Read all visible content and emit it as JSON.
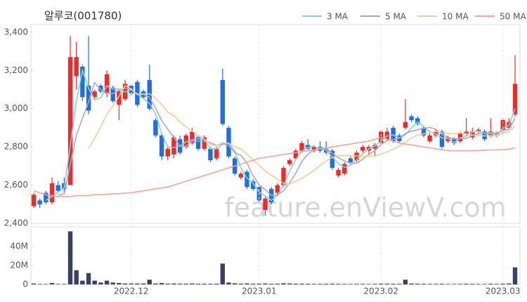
{
  "chart_data": [
    {
      "type": "candlestick",
      "title": "알루코(001780)",
      "watermark": "feature.enViewV.com",
      "up_color": "#ee2b2b",
      "down_color": "#1f6fe0",
      "open": [
        2490,
        2520,
        2560,
        2510,
        2600,
        2610,
        2600,
        3170,
        3220,
        3120,
        3060,
        3120,
        3080,
        3110,
        3020,
        3050,
        3120,
        3140,
        3090,
        3150,
        2940,
        2860,
        2750,
        2760,
        2840,
        2800,
        2820,
        2850,
        2790,
        2790,
        2740,
        3150,
        2900,
        2740,
        2640,
        2670,
        2620,
        2590,
        2470,
        2580,
        2560,
        2600,
        2710,
        2740,
        2780,
        2810,
        2780,
        2800,
        2790,
        2780,
        2650,
        2660,
        2740,
        2730,
        2780,
        2780,
        2790,
        2820,
        2840,
        2900,
        2860,
        2900,
        2960,
        2950,
        2900,
        2830,
        2860,
        2880,
        2830,
        2840,
        2830,
        2870,
        2850,
        2880,
        2880,
        2860,
        2860,
        2890,
        2900,
        2970
      ],
      "high": [
        2560,
        2530,
        2570,
        2640,
        2620,
        2640,
        3380,
        3350,
        3230,
        3380,
        3100,
        3130,
        3200,
        3120,
        3100,
        3150,
        3130,
        3150,
        3100,
        3230,
        2950,
        2870,
        2800,
        2860,
        2860,
        2870,
        2900,
        2860,
        2860,
        2800,
        2800,
        3210,
        2910,
        2750,
        2670,
        2680,
        2630,
        2600,
        2540,
        2590,
        2610,
        2700,
        2740,
        2790,
        2830,
        2840,
        2810,
        2830,
        2830,
        2790,
        2690,
        2720,
        2750,
        2780,
        2810,
        2810,
        2820,
        2890,
        2900,
        2910,
        2870,
        3050,
        2970,
        2960,
        2910,
        2870,
        2890,
        2890,
        2860,
        2850,
        2880,
        2950,
        2900,
        2900,
        2890,
        2950,
        2880,
        2950,
        2950,
        3280
      ],
      "low": [
        2480,
        2480,
        2500,
        2500,
        2560,
        2560,
        2600,
        3100,
        3040,
        2970,
        3050,
        3080,
        3060,
        3030,
        2940,
        3040,
        3070,
        3010,
        3050,
        2990,
        2850,
        2730,
        2730,
        2740,
        2760,
        2790,
        2810,
        2780,
        2780,
        2720,
        2730,
        2910,
        2740,
        2650,
        2630,
        2580,
        2570,
        2510,
        2440,
        2500,
        2550,
        2590,
        2700,
        2730,
        2770,
        2780,
        2770,
        2770,
        2760,
        2680,
        2640,
        2650,
        2710,
        2720,
        2770,
        2760,
        2750,
        2810,
        2830,
        2820,
        2820,
        2890,
        2930,
        2910,
        2850,
        2820,
        2850,
        2790,
        2820,
        2810,
        2820,
        2860,
        2840,
        2870,
        2830,
        2850,
        2850,
        2870,
        2890,
        2960
      ],
      "close": [
        2550,
        2500,
        2510,
        2610,
        2570,
        2580,
        3270,
        3270,
        3060,
        2990,
        3090,
        3090,
        3180,
        3040,
        3090,
        3130,
        3080,
        3020,
        3060,
        3000,
        2860,
        2750,
        2790,
        2850,
        2770,
        2860,
        2880,
        2790,
        2850,
        2730,
        2790,
        2920,
        2750,
        2660,
        2660,
        2590,
        2580,
        2520,
        2530,
        2510,
        2600,
        2690,
        2730,
        2780,
        2820,
        2790,
        2800,
        2780,
        2770,
        2690,
        2680,
        2710,
        2720,
        2770,
        2800,
        2800,
        2810,
        2880,
        2880,
        2830,
        2830,
        2930,
        2940,
        2920,
        2860,
        2860,
        2880,
        2800,
        2850,
        2820,
        2870,
        2880,
        2880,
        2890,
        2840,
        2880,
        2870,
        2940,
        2930,
        3130
      ],
      "series": [
        {
          "name": "3 MA",
          "color": "#86d4c9",
          "values": [
            null,
            null,
            2520,
            2540,
            2563,
            2587,
            2807,
            3040,
            3200,
            3107,
            3047,
            3057,
            3120,
            3103,
            3103,
            3087,
            3100,
            3077,
            3053,
            3027,
            2973,
            2870,
            2800,
            2797,
            2803,
            2827,
            2837,
            2843,
            2840,
            2790,
            2790,
            2813,
            2820,
            2777,
            2690,
            2637,
            2610,
            2563,
            2543,
            2520,
            2547,
            2600,
            2673,
            2733,
            2777,
            2797,
            2803,
            2790,
            2783,
            2747,
            2713,
            2693,
            2703,
            2733,
            2763,
            2790,
            2803,
            2830,
            2857,
            2863,
            2847,
            2863,
            2900,
            2930,
            2907,
            2880,
            2867,
            2847,
            2843,
            2823,
            2847,
            2857,
            2877,
            2883,
            2870,
            2870,
            2863,
            2897,
            2913,
            3000
          ]
        },
        {
          "name": "5 MA",
          "color": "#b3a2cf",
          "values": [
            null,
            null,
            null,
            null,
            2548,
            2554,
            2708,
            2860,
            2950,
            3034,
            3136,
            3100,
            3082,
            3078,
            3098,
            3106,
            3104,
            3072,
            3076,
            3058,
            3004,
            2938,
            2892,
            2850,
            2804,
            2804,
            2830,
            2830,
            2830,
            2822,
            2808,
            2816,
            2808,
            2770,
            2756,
            2716,
            2648,
            2602,
            2576,
            2546,
            2548,
            2570,
            2612,
            2662,
            2724,
            2762,
            2784,
            2794,
            2792,
            2766,
            2744,
            2726,
            2714,
            2714,
            2736,
            2760,
            2780,
            2812,
            2834,
            2840,
            2846,
            2870,
            2882,
            2890,
            2896,
            2902,
            2892,
            2864,
            2850,
            2842,
            2844,
            2844,
            2860,
            2868,
            2872,
            2874,
            2872,
            2884,
            2892,
            2950
          ]
        },
        {
          "name": "10 MA",
          "color": "#f2cc95",
          "values": [
            null,
            null,
            null,
            null,
            null,
            null,
            null,
            null,
            null,
            2791,
            2845,
            2904,
            2971,
            3014,
            3066,
            3121,
            3102,
            3077,
            3077,
            3078,
            3055,
            3021,
            2982,
            2963,
            2931,
            2904,
            2884,
            2861,
            2840,
            2813,
            2806,
            2823,
            2819,
            2800,
            2789,
            2762,
            2732,
            2705,
            2673,
            2651,
            2632,
            2609,
            2607,
            2619,
            2635,
            2655,
            2677,
            2703,
            2727,
            2745,
            2753,
            2755,
            2754,
            2753,
            2751,
            2752,
            2753,
            2763,
            2774,
            2788,
            2803,
            2825,
            2847,
            2862,
            2868,
            2874,
            2881,
            2873,
            2870,
            2869,
            2873,
            2868,
            2862,
            2859,
            2857,
            2859,
            2858,
            2872,
            2880,
            2911
          ]
        },
        {
          "name": "50 MA",
          "color": "#f5a393",
          "values": [
            2570,
            2560,
            2550,
            2545,
            2540,
            2540,
            2540,
            2545,
            2545,
            2545,
            2550,
            2550,
            2552,
            2555,
            2555,
            2558,
            2560,
            2565,
            2570,
            2575,
            2580,
            2585,
            2590,
            2600,
            2610,
            2620,
            2630,
            2640,
            2650,
            2660,
            2670,
            2680,
            2690,
            2700,
            2710,
            2720,
            2730,
            2740,
            2745,
            2750,
            2755,
            2760,
            2765,
            2770,
            2775,
            2780,
            2785,
            2790,
            2795,
            2800,
            2805,
            2810,
            2815,
            2820,
            2825,
            2830,
            2840,
            2850,
            2840,
            2830,
            2820,
            2815,
            2810,
            2805,
            2800,
            2795,
            2790,
            2785,
            2780,
            2780,
            2780,
            2780,
            2780,
            2782,
            2782,
            2784,
            2784,
            2786,
            2788,
            2795
          ]
        }
      ],
      "ylim": [
        2400,
        3440
      ],
      "yticks": [
        {
          "value": 2400,
          "label": "2,400"
        },
        {
          "value": 2600,
          "label": "2,600"
        },
        {
          "value": 2800,
          "label": "2,800"
        },
        {
          "value": 3000,
          "label": "3,000"
        },
        {
          "value": 3200,
          "label": "3,200"
        },
        {
          "value": 3400,
          "label": "3,400"
        }
      ]
    },
    {
      "type": "bar",
      "color": "#3b3f6b",
      "categories": [
        null,
        null,
        null,
        null,
        null,
        null,
        null,
        null,
        null,
        null,
        null,
        null,
        null,
        null,
        null,
        null,
        "2022.12",
        null,
        null,
        null,
        null,
        null,
        null,
        null,
        null,
        null,
        null,
        null,
        null,
        null,
        null,
        null,
        null,
        null,
        null,
        null,
        null,
        "2023.01",
        null,
        null,
        null,
        null,
        null,
        null,
        null,
        null,
        null,
        null,
        null,
        null,
        null,
        null,
        null,
        null,
        null,
        null,
        null,
        "2023.02",
        null,
        null,
        null,
        null,
        null,
        null,
        null,
        null,
        null,
        null,
        null,
        null,
        null,
        null,
        null,
        null,
        null,
        null,
        null,
        "2023.03",
        null,
        null
      ],
      "values": [
        1000000,
        500000,
        500000,
        1500000,
        500000,
        500000,
        56000000,
        15000000,
        4000000,
        12000000,
        4000000,
        2000000,
        4000000,
        2000000,
        1500000,
        1000000,
        1000000,
        1000000,
        1000000,
        5000000,
        1000000,
        1500000,
        800000,
        1000000,
        800000,
        800000,
        1000000,
        700000,
        800000,
        700000,
        800000,
        22000000,
        2000000,
        1200000,
        800000,
        1000000,
        800000,
        800000,
        1000000,
        700000,
        800000,
        1200000,
        1000000,
        800000,
        800000,
        700000,
        600000,
        600000,
        700000,
        800000,
        600000,
        600000,
        500000,
        600000,
        600000,
        500000,
        600000,
        800000,
        800000,
        700000,
        600000,
        5000000,
        1000000,
        800000,
        700000,
        600000,
        600000,
        700000,
        500000,
        500000,
        600000,
        700000,
        600000,
        500000,
        500000,
        700000,
        600000,
        800000,
        1000000,
        18000000
      ],
      "ylim": [
        0,
        60000000
      ],
      "yticks": [
        0,
        {
          "value": 20000000,
          "label": "20M"
        },
        {
          "value": 40000000,
          "label": "40M"
        }
      ]
    }
  ]
}
